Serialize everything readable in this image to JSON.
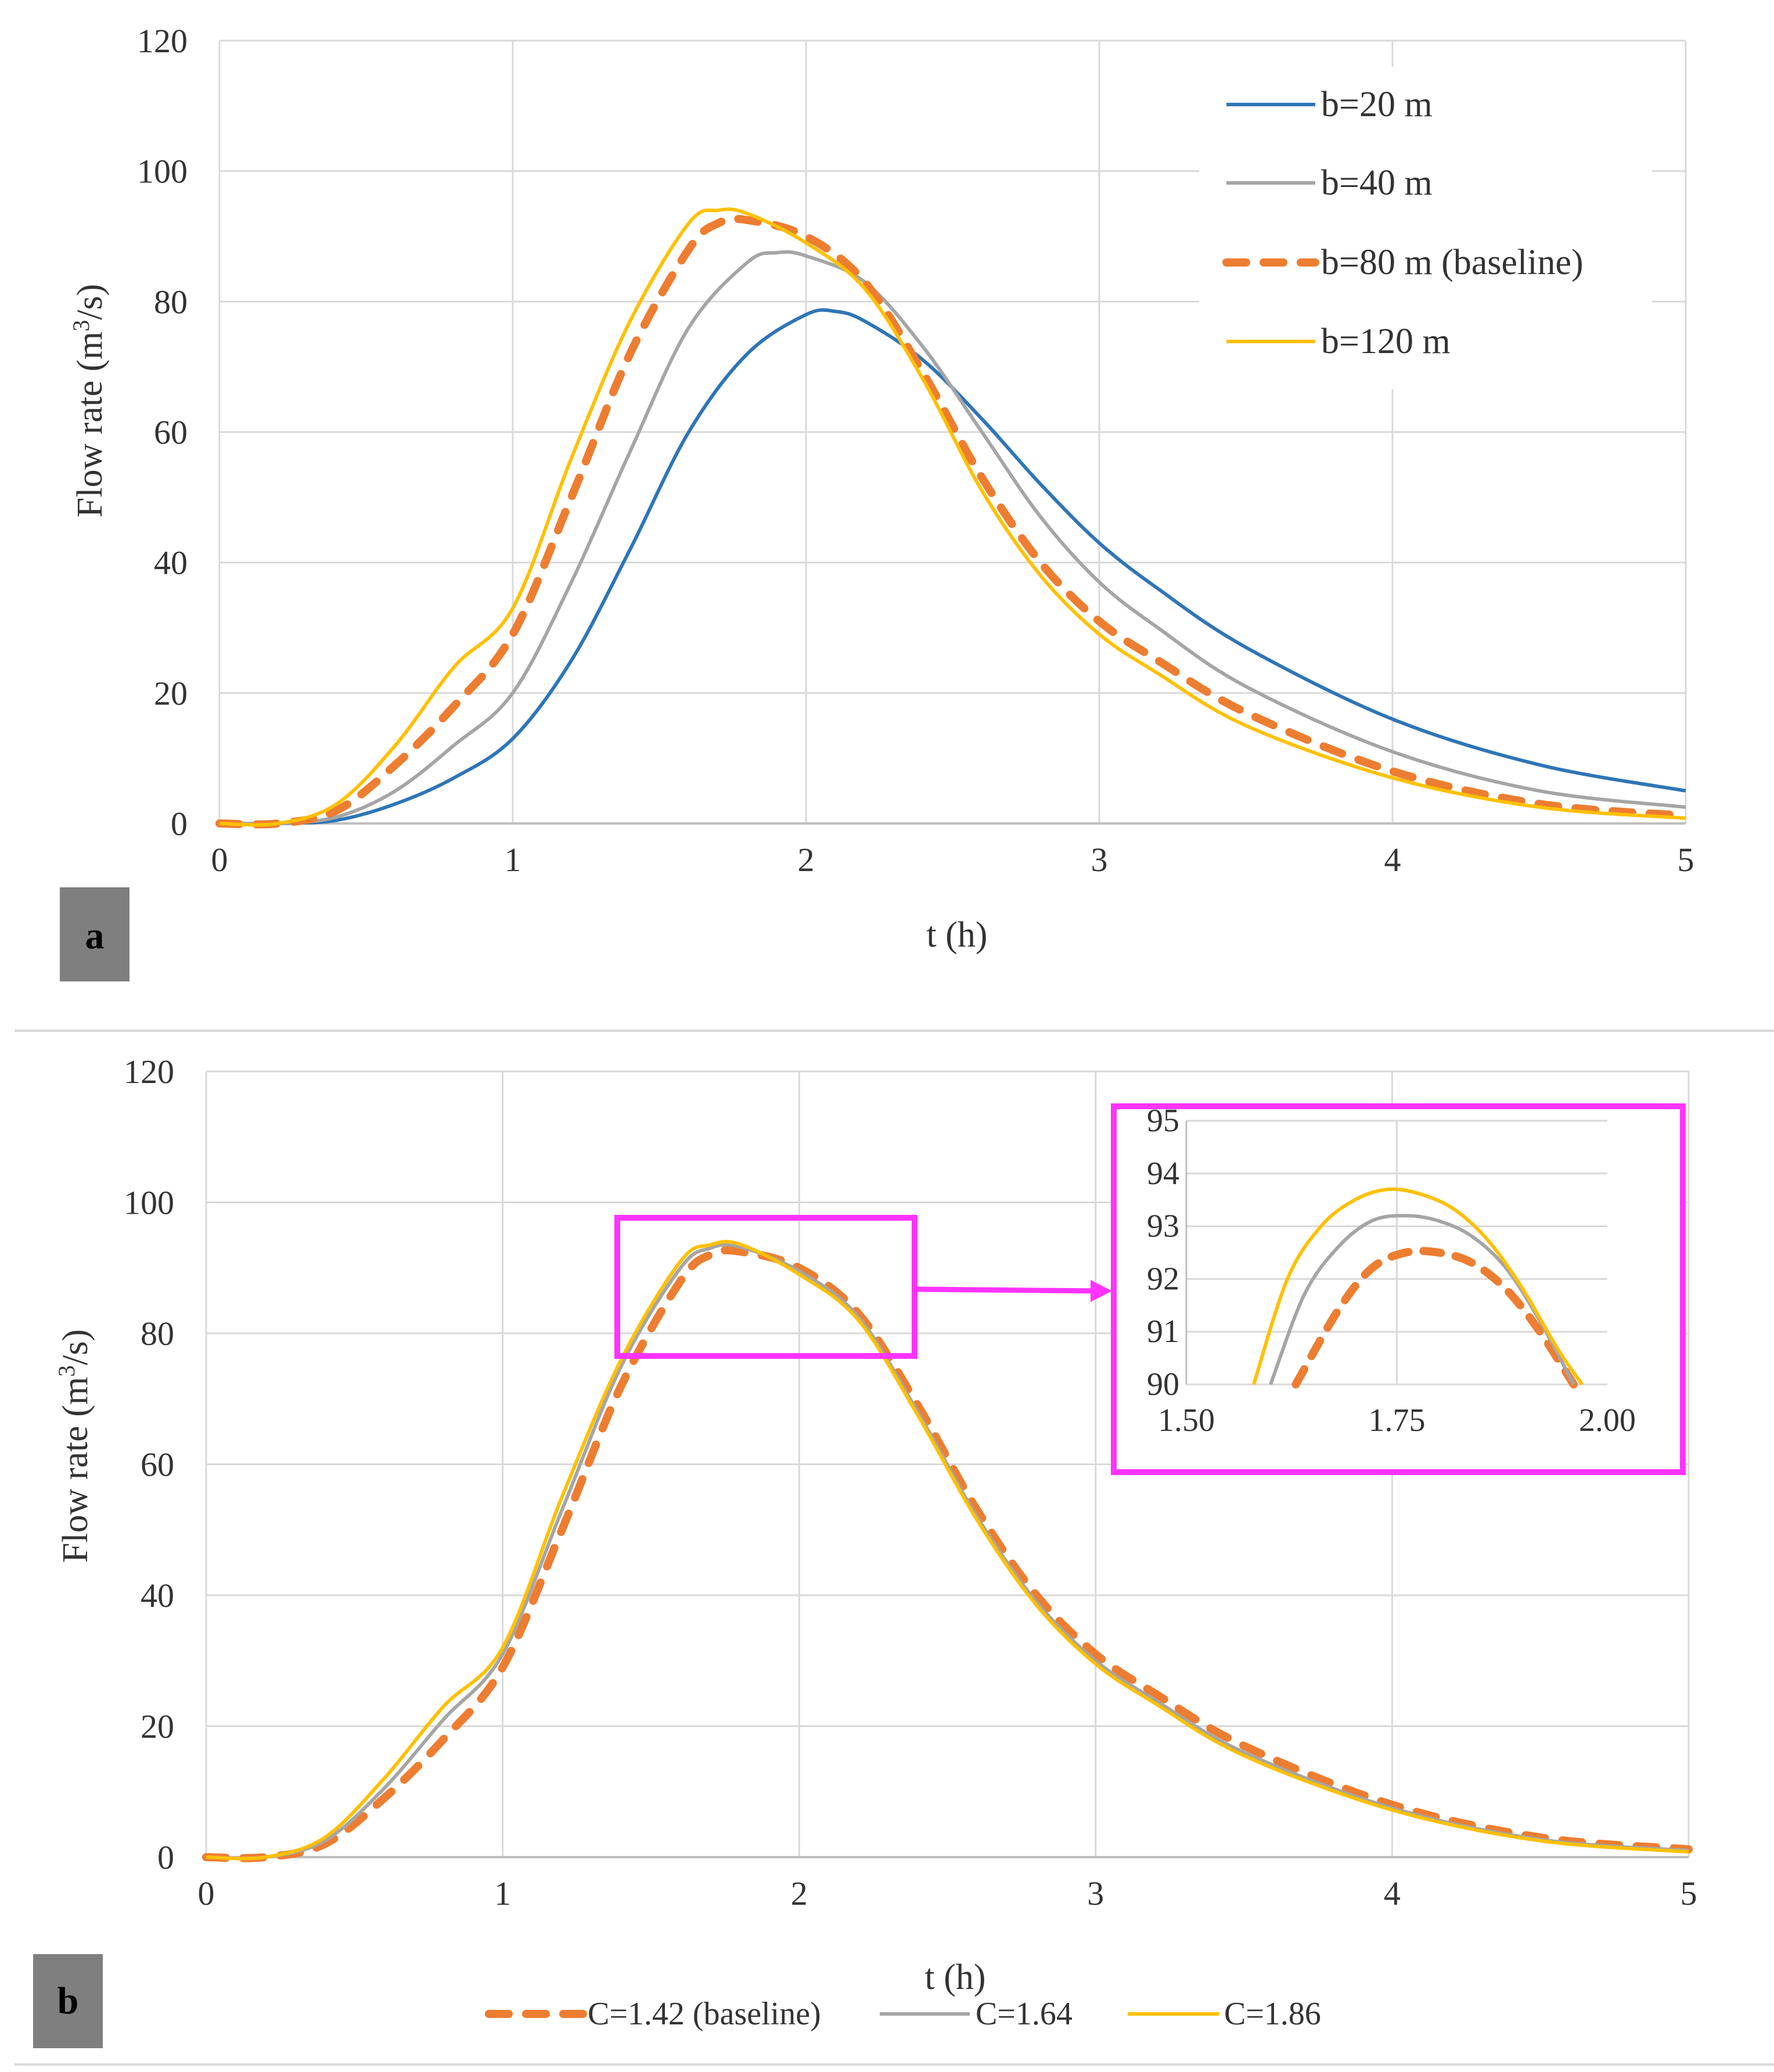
{
  "chart_data": [
    {
      "panel": "a",
      "type": "line",
      "xlabel": "t (h)",
      "ylabel": "Flow rate (m3/s)",
      "xlim": [
        0,
        5
      ],
      "ylim": [
        0,
        120
      ],
      "xticks": [
        "0",
        "1",
        "2",
        "3",
        "4",
        "5"
      ],
      "yticks": [
        "0",
        "20",
        "40",
        "60",
        "80",
        "100",
        "120"
      ],
      "grid": true,
      "legend": "top-right",
      "series": [
        {
          "name": "b=20 m",
          "color": "#2E75B6",
          "dash": false,
          "x": [
            0,
            0.2,
            0.4,
            0.6,
            0.8,
            1.0,
            1.2,
            1.4,
            1.6,
            1.8,
            2.0,
            2.1,
            2.2,
            2.4,
            2.6,
            2.8,
            3.0,
            3.2,
            3.5,
            4.0,
            4.5,
            5.0
          ],
          "y": [
            0,
            0,
            0.5,
            3,
            7,
            13,
            25,
            42,
            60,
            72,
            78,
            78.5,
            77,
            71,
            62,
            52,
            43,
            36,
            27,
            16,
            9,
            5
          ]
        },
        {
          "name": "b=40 m",
          "color": "#A5A5A5",
          "dash": false,
          "x": [
            0,
            0.2,
            0.4,
            0.6,
            0.8,
            1.0,
            1.2,
            1.4,
            1.6,
            1.8,
            1.9,
            2.0,
            2.2,
            2.4,
            2.6,
            2.8,
            3.0,
            3.2,
            3.5,
            4.0,
            4.5,
            5.0
          ],
          "y": [
            0,
            0,
            1,
            5,
            12,
            20,
            37,
            57,
            76,
            86,
            87.5,
            87,
            83,
            73,
            60,
            47,
            37,
            30,
            21,
            11,
            5,
            2.5
          ]
        },
        {
          "name": "b=80 m (baseline)",
          "color": "#ED7D31",
          "dash": true,
          "x": [
            0,
            0.2,
            0.4,
            0.6,
            0.8,
            1.0,
            1.2,
            1.4,
            1.6,
            1.7,
            1.8,
            2.0,
            2.2,
            2.4,
            2.6,
            2.8,
            3.0,
            3.2,
            3.5,
            4.0,
            4.5,
            5.0
          ],
          "y": [
            0,
            0,
            2,
            9,
            18,
            29,
            50,
            72,
            88,
            92,
            92.5,
            90,
            83,
            69,
            53,
            40,
            31,
            25,
            17,
            8,
            3,
            1.2
          ]
        },
        {
          "name": "b=120 m",
          "color": "#FFC000",
          "dash": false,
          "x": [
            0,
            0.2,
            0.4,
            0.6,
            0.8,
            1.0,
            1.2,
            1.4,
            1.6,
            1.7,
            1.8,
            2.0,
            2.2,
            2.4,
            2.6,
            2.8,
            3.0,
            3.2,
            3.5,
            4.0,
            4.5,
            5.0
          ],
          "y": [
            0,
            0,
            3,
            12,
            24,
            33,
            56,
            77,
            92,
            94,
            93.5,
            89,
            82,
            68,
            51,
            38,
            29,
            23,
            15,
            7,
            2.5,
            0.8
          ]
        }
      ]
    },
    {
      "panel": "b",
      "type": "line",
      "xlabel": "t (h)",
      "ylabel": "Flow rate (m3/s)",
      "xlim": [
        0,
        5
      ],
      "ylim": [
        0,
        120
      ],
      "xticks": [
        "0",
        "1",
        "2",
        "3",
        "4",
        "5"
      ],
      "yticks": [
        "0",
        "20",
        "40",
        "60",
        "80",
        "100",
        "120"
      ],
      "grid": true,
      "legend": "bottom",
      "series": [
        {
          "name": "C=1.42 (baseline)",
          "color": "#ED7D31",
          "dash": true,
          "x": [
            0,
            0.2,
            0.4,
            0.6,
            0.8,
            1.0,
            1.2,
            1.4,
            1.6,
            1.7,
            1.8,
            2.0,
            2.2,
            2.4,
            2.6,
            2.8,
            3.0,
            3.2,
            3.5,
            4.0,
            4.5,
            5.0
          ],
          "y": [
            0,
            0,
            2,
            9,
            18,
            29,
            50,
            72,
            88,
            92,
            92.5,
            90,
            83,
            69,
            53,
            40,
            31,
            25,
            17,
            8,
            3,
            1.2
          ]
        },
        {
          "name": "C=1.64",
          "color": "#A5A5A5",
          "dash": false,
          "x": [
            0,
            0.2,
            0.4,
            0.6,
            0.8,
            1.0,
            1.2,
            1.4,
            1.6,
            1.7,
            1.8,
            2.0,
            2.2,
            2.4,
            2.6,
            2.8,
            3.0,
            3.2,
            3.5,
            4.0,
            4.5,
            5.0
          ],
          "y": [
            0,
            0,
            2.5,
            10.5,
            21,
            31,
            53,
            75,
            90,
            93,
            93.2,
            89.5,
            82.5,
            68,
            52,
            39,
            30,
            24,
            16,
            7.5,
            2.7,
            1
          ]
        },
        {
          "name": "C=1.86",
          "color": "#FFC000",
          "dash": false,
          "x": [
            0,
            0.2,
            0.4,
            0.6,
            0.8,
            1.0,
            1.2,
            1.4,
            1.6,
            1.7,
            1.8,
            2.0,
            2.2,
            2.4,
            2.6,
            2.8,
            3.0,
            3.2,
            3.5,
            4.0,
            4.5,
            5.0
          ],
          "y": [
            0,
            0,
            3,
            12,
            23,
            32,
            55,
            76,
            91,
            93.5,
            93.6,
            89,
            82,
            67.5,
            51.5,
            38.5,
            29.5,
            23.5,
            15.5,
            7.2,
            2.5,
            0.8
          ]
        }
      ],
      "inset": {
        "xlim": [
          1.5,
          2.0
        ],
        "ylim": [
          90,
          95
        ],
        "xticks": [
          "1.50",
          "1.75",
          "2.00"
        ],
        "yticks": [
          "90",
          "91",
          "92",
          "93",
          "94",
          "95"
        ],
        "series": [
          {
            "name": "C=1.42 (baseline)",
            "color": "#ED7D31",
            "dash": true,
            "x": [
              1.63,
              1.68,
              1.72,
              1.76,
              1.8,
              1.84,
              1.88,
              1.92,
              1.96
            ],
            "y": [
              90,
              91.4,
              92.2,
              92.5,
              92.5,
              92.3,
              91.8,
              91.0,
              90.0
            ]
          },
          {
            "name": "C=1.64",
            "color": "#A5A5A5",
            "dash": false,
            "x": [
              1.6,
              1.64,
              1.68,
              1.72,
              1.76,
              1.8,
              1.84,
              1.88,
              1.92,
              1.96
            ],
            "y": [
              90,
              91.7,
              92.6,
              93.1,
              93.2,
              93.1,
              92.8,
              92.2,
              91.2,
              90.0
            ]
          },
          {
            "name": "C=1.86",
            "color": "#FFC000",
            "dash": false,
            "x": [
              1.58,
              1.62,
              1.66,
              1.7,
              1.74,
              1.78,
              1.82,
              1.86,
              1.9,
              1.94,
              1.97
            ],
            "y": [
              90,
              92.0,
              93.0,
              93.5,
              93.7,
              93.6,
              93.3,
              92.7,
              91.8,
              90.7,
              90.0
            ]
          }
        ]
      }
    }
  ]
}
